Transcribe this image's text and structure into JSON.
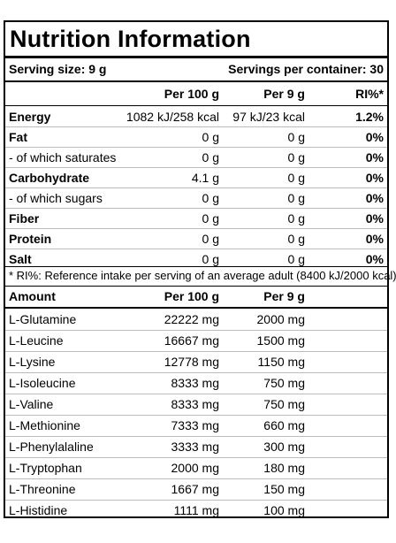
{
  "title": "Nutrition Information",
  "serving": {
    "size_label": "Serving size: 9 g",
    "per_container_label": "Servings per container: 30"
  },
  "headers": {
    "col1": "Per 100 g",
    "col2": "Per 9 g",
    "col3": "RI%*"
  },
  "nutrients": [
    {
      "name": "Energy",
      "per100": "1082 kJ/258 kcal",
      "perServing": "97 kJ/23 kcal",
      "ri": "1.2%"
    },
    {
      "name": "Fat",
      "per100": "0 g",
      "perServing": "0 g",
      "ri": "0%"
    },
    {
      "name": "- of which saturates",
      "per100": "0 g",
      "perServing": "0 g",
      "ri": "0%"
    },
    {
      "name": "Carbohydrate",
      "per100": "4.1 g",
      "perServing": "0 g",
      "ri": "0%"
    },
    {
      "name": "- of which sugars",
      "per100": "0 g",
      "perServing": "0 g",
      "ri": "0%"
    },
    {
      "name": "Fiber",
      "per100": "0 g",
      "perServing": "0 g",
      "ri": "0%"
    },
    {
      "name": "Protein",
      "per100": "0 g",
      "perServing": "0 g",
      "ri": "0%"
    },
    {
      "name": "Salt",
      "per100": "0 g",
      "perServing": "0 g",
      "ri": "0%"
    }
  ],
  "footnote": "* RI%: Reference intake per serving of an average adult (8400 kJ/2000 kcal).",
  "amino_headers": {
    "name": "Amount",
    "col1": "Per 100 g",
    "col2": "Per 9 g"
  },
  "amino": [
    {
      "name": "L-Glutamine",
      "per100": "22222 mg",
      "perServing": "2000 mg"
    },
    {
      "name": "L-Leucine",
      "per100": "16667 mg",
      "perServing": "1500 mg"
    },
    {
      "name": "L-Lysine",
      "per100": "12778 mg",
      "perServing": "1150 mg"
    },
    {
      "name": "L-Isoleucine",
      "per100": "8333 mg",
      "perServing": "750 mg"
    },
    {
      "name": "L-Valine",
      "per100": "8333 mg",
      "perServing": "750 mg"
    },
    {
      "name": "L-Methionine",
      "per100": "7333 mg",
      "perServing": "660 mg"
    },
    {
      "name": "L-Phenylalaline",
      "per100": "3333 mg",
      "perServing": "300 mg"
    },
    {
      "name": "L-Tryptophan",
      "per100": "2000 mg",
      "perServing": "180 mg"
    },
    {
      "name": "L-Threonine",
      "per100": "1667 mg",
      "perServing": "150 mg"
    },
    {
      "name": "L-Histidine",
      "per100": "1111 mg",
      "perServing": "100 mg"
    }
  ]
}
